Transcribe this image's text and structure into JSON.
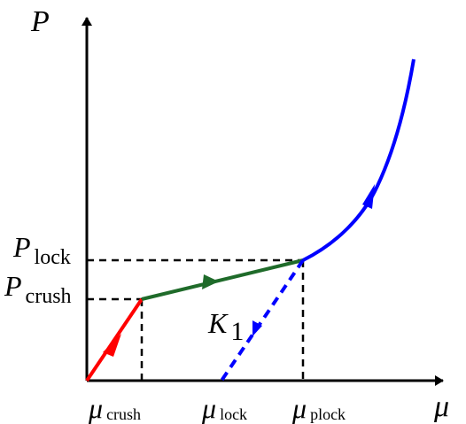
{
  "axes": {
    "y_label": "P",
    "x_label": "μ"
  },
  "pressure_labels": {
    "lock": {
      "main": "P",
      "sub": "lock"
    },
    "crush": {
      "main": "P",
      "sub": "crush"
    }
  },
  "strain_labels": {
    "crush": {
      "main": "μ",
      "sub": "crush"
    },
    "lock": {
      "main": "μ",
      "sub": "lock"
    },
    "plock": {
      "main": "μ",
      "sub": "plock"
    }
  },
  "slope_label": {
    "main": "K",
    "sub": "1"
  },
  "colors": {
    "axis": "#000000",
    "guide": "#000000",
    "elastic": "#ff0000",
    "crush": "#1f6b2a",
    "compaction": "#0000ff",
    "unload": "#0000ff"
  }
}
